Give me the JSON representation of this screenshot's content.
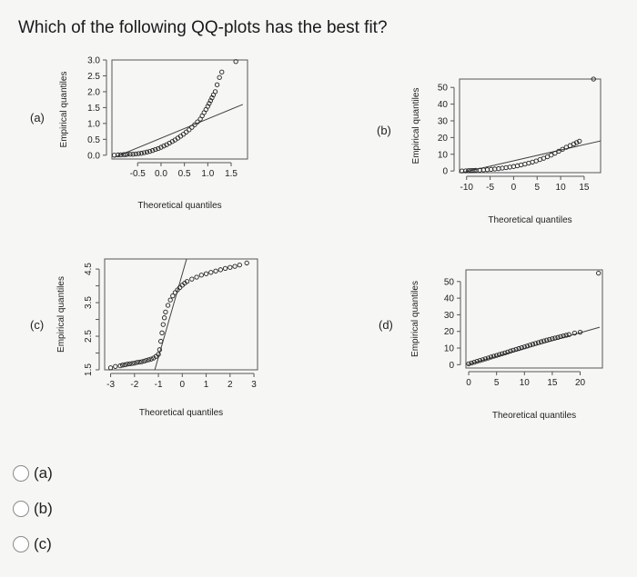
{
  "question": "Which of the following QQ-plots has the best fit?",
  "options": [
    {
      "label": "(a)"
    },
    {
      "label": "(b)"
    },
    {
      "label": "(c)"
    }
  ],
  "chart_data": [
    {
      "panel_label": "(a)",
      "type": "scatter",
      "xlabel": "Theoretical quantiles",
      "ylabel": "Empirical quantiles",
      "x_ticks": [
        -0.5,
        0.0,
        0.5,
        1.0,
        1.5
      ],
      "x_tick_labels": [
        "-0.5",
        "0.0",
        "0.5",
        "1.0",
        "1.5"
      ],
      "y_ticks": [
        0.0,
        0.5,
        1.0,
        1.5,
        2.0,
        2.5,
        3.0
      ],
      "y_tick_labels": [
        "0.0",
        "0.5",
        "1.0",
        "1.5",
        "2.0",
        "2.5",
        "3.0"
      ],
      "xlim": [
        -1.05,
        1.85
      ],
      "ylim": [
        -0.12,
        3.0
      ],
      "reference_line": [
        [
          -1.0,
          -0.07
        ],
        [
          1.75,
          1.6
        ]
      ],
      "points": [
        [
          -1.0,
          0.0
        ],
        [
          -0.92,
          0.01
        ],
        [
          -0.86,
          0.01
        ],
        [
          -0.8,
          0.02
        ],
        [
          -0.76,
          0.02
        ],
        [
          -0.72,
          0.03
        ],
        [
          -0.66,
          0.03
        ],
        [
          -0.6,
          0.03
        ],
        [
          -0.54,
          0.04
        ],
        [
          -0.48,
          0.05
        ],
        [
          -0.42,
          0.06
        ],
        [
          -0.36,
          0.08
        ],
        [
          -0.3,
          0.1
        ],
        [
          -0.24,
          0.12
        ],
        [
          -0.18,
          0.15
        ],
        [
          -0.12,
          0.18
        ],
        [
          -0.06,
          0.21
        ],
        [
          0.0,
          0.25
        ],
        [
          0.06,
          0.29
        ],
        [
          0.12,
          0.33
        ],
        [
          0.18,
          0.38
        ],
        [
          0.24,
          0.43
        ],
        [
          0.3,
          0.48
        ],
        [
          0.36,
          0.54
        ],
        [
          0.42,
          0.6
        ],
        [
          0.48,
          0.66
        ],
        [
          0.54,
          0.73
        ],
        [
          0.6,
          0.8
        ],
        [
          0.66,
          0.88
        ],
        [
          0.72,
          0.96
        ],
        [
          0.78,
          1.05
        ],
        [
          0.84,
          1.14
        ],
        [
          0.88,
          1.24
        ],
        [
          0.92,
          1.34
        ],
        [
          0.96,
          1.44
        ],
        [
          1.0,
          1.54
        ],
        [
          1.03,
          1.63
        ],
        [
          1.06,
          1.72
        ],
        [
          1.09,
          1.81
        ],
        [
          1.12,
          1.9
        ],
        [
          1.16,
          2.0
        ],
        [
          1.2,
          2.22
        ],
        [
          1.25,
          2.45
        ],
        [
          1.3,
          2.62
        ],
        [
          1.6,
          2.95
        ]
      ]
    },
    {
      "panel_label": "(b)",
      "type": "scatter",
      "xlabel": "Theoretical quantiles",
      "ylabel": "Empirical quantiles",
      "x_ticks": [
        -10,
        -5,
        0,
        5,
        10,
        15
      ],
      "x_tick_labels": [
        "-10",
        "-5",
        "0",
        "5",
        "10",
        "15"
      ],
      "y_ticks": [
        0,
        10,
        20,
        30,
        40,
        50
      ],
      "y_tick_labels": [
        "0",
        "10",
        "20",
        "30",
        "40",
        "50"
      ],
      "xlim": [
        -11.5,
        18.5
      ],
      "ylim": [
        -1,
        55
      ],
      "reference_line": [
        [
          -11,
          -1
        ],
        [
          18.5,
          18
        ]
      ],
      "points": [
        [
          -11,
          0.0
        ],
        [
          -10.2,
          0.1
        ],
        [
          -9.6,
          0.2
        ],
        [
          -9.2,
          0.2
        ],
        [
          -8.8,
          0.3
        ],
        [
          -8.4,
          0.3
        ],
        [
          -8.0,
          0.4
        ],
        [
          -7.2,
          0.5
        ],
        [
          -6.4,
          0.6
        ],
        [
          -5.6,
          0.8
        ],
        [
          -4.8,
          1.0
        ],
        [
          -4.0,
          1.2
        ],
        [
          -3.2,
          1.4
        ],
        [
          -2.4,
          1.7
        ],
        [
          -1.6,
          2.0
        ],
        [
          -0.8,
          2.3
        ],
        [
          0.0,
          2.7
        ],
        [
          0.8,
          3.1
        ],
        [
          1.6,
          3.6
        ],
        [
          2.4,
          4.1
        ],
        [
          3.2,
          4.7
        ],
        [
          4.0,
          5.3
        ],
        [
          4.8,
          6.0
        ],
        [
          5.6,
          6.8
        ],
        [
          6.4,
          7.6
        ],
        [
          7.2,
          8.5
        ],
        [
          8.0,
          9.5
        ],
        [
          8.8,
          10.6
        ],
        [
          9.6,
          11.8
        ],
        [
          10.4,
          13.0
        ],
        [
          11.2,
          14.2
        ],
        [
          12.0,
          15.2
        ],
        [
          12.8,
          16.2
        ],
        [
          13.4,
          17.0
        ],
        [
          14.0,
          17.8
        ],
        [
          17.0,
          55.0
        ]
      ]
    },
    {
      "panel_label": "(c)",
      "type": "scatter",
      "xlabel": "Theoretical quantiles",
      "ylabel": "Empirical quantiles",
      "x_ticks": [
        -3,
        -2,
        -1,
        0,
        1,
        2,
        3
      ],
      "x_tick_labels": [
        "-3",
        "-2",
        "-1",
        "0",
        "1",
        "2",
        "3"
      ],
      "y_ticks": [
        1.5,
        2.0,
        2.5,
        3.0,
        3.5,
        4.0,
        4.5
      ],
      "y_tick_labels": [
        "1.5",
        "",
        "2.5",
        "",
        "3.5",
        "",
        "4.5"
      ],
      "xlim": [
        -3.25,
        3.15
      ],
      "ylim": [
        1.5,
        4.8
      ],
      "reference_line": [
        [
          -1.15,
          1.5
        ],
        [
          0.2,
          4.85
        ]
      ],
      "points": [
        [
          -3.0,
          1.56
        ],
        [
          -2.8,
          1.6
        ],
        [
          -2.6,
          1.62
        ],
        [
          -2.5,
          1.64
        ],
        [
          -2.4,
          1.65
        ],
        [
          -2.3,
          1.67
        ],
        [
          -2.2,
          1.68
        ],
        [
          -2.1,
          1.69
        ],
        [
          -2.0,
          1.7
        ],
        [
          -1.9,
          1.72
        ],
        [
          -1.8,
          1.73
        ],
        [
          -1.7,
          1.74
        ],
        [
          -1.6,
          1.76
        ],
        [
          -1.5,
          1.78
        ],
        [
          -1.4,
          1.8
        ],
        [
          -1.3,
          1.82
        ],
        [
          -1.2,
          1.85
        ],
        [
          -1.1,
          1.9
        ],
        [
          -1.0,
          1.96
        ],
        [
          -0.95,
          2.1
        ],
        [
          -0.9,
          2.35
        ],
        [
          -0.85,
          2.6
        ],
        [
          -0.8,
          2.85
        ],
        [
          -0.75,
          3.05
        ],
        [
          -0.7,
          3.22
        ],
        [
          -0.6,
          3.42
        ],
        [
          -0.5,
          3.58
        ],
        [
          -0.4,
          3.7
        ],
        [
          -0.3,
          3.8
        ],
        [
          -0.2,
          3.88
        ],
        [
          -0.1,
          3.95
        ],
        [
          0.0,
          4.02
        ],
        [
          0.1,
          4.08
        ],
        [
          0.2,
          4.13
        ],
        [
          0.4,
          4.2
        ],
        [
          0.6,
          4.26
        ],
        [
          0.8,
          4.32
        ],
        [
          1.0,
          4.36
        ],
        [
          1.2,
          4.4
        ],
        [
          1.4,
          4.44
        ],
        [
          1.6,
          4.48
        ],
        [
          1.8,
          4.52
        ],
        [
          2.0,
          4.55
        ],
        [
          2.2,
          4.58
        ],
        [
          2.4,
          4.62
        ],
        [
          2.7,
          4.68
        ]
      ]
    },
    {
      "panel_label": "(d)",
      "type": "scatter",
      "xlabel": "Theoretical quantiles",
      "ylabel": "Empirical quantiles",
      "x_ticks": [
        0,
        5,
        10,
        15,
        20
      ],
      "x_tick_labels": [
        "0",
        "5",
        "10",
        "15",
        "20"
      ],
      "y_ticks": [
        0,
        10,
        20,
        30,
        40,
        50
      ],
      "y_tick_labels": [
        "0",
        "10",
        "20",
        "30",
        "40",
        "50"
      ],
      "xlim": [
        -0.5,
        24
      ],
      "ylim": [
        -2,
        57
      ],
      "reference_line": [
        [
          -0.2,
          0
        ],
        [
          23.5,
          22.5
        ]
      ],
      "points": [
        [
          0.0,
          0.5
        ],
        [
          0.5,
          1.0
        ],
        [
          1.0,
          1.5
        ],
        [
          1.5,
          2.0
        ],
        [
          2.0,
          2.5
        ],
        [
          2.5,
          3.0
        ],
        [
          3.0,
          3.5
        ],
        [
          3.5,
          4.0
        ],
        [
          4.0,
          4.6
        ],
        [
          4.5,
          5.1
        ],
        [
          5.0,
          5.6
        ],
        [
          5.5,
          6.1
        ],
        [
          6.0,
          6.6
        ],
        [
          6.5,
          7.1
        ],
        [
          7.0,
          7.6
        ],
        [
          7.5,
          8.2
        ],
        [
          8.0,
          8.7
        ],
        [
          8.5,
          9.2
        ],
        [
          9.0,
          9.7
        ],
        [
          9.5,
          10.2
        ],
        [
          10.0,
          10.7
        ],
        [
          10.5,
          11.2
        ],
        [
          11.0,
          11.8
        ],
        [
          11.5,
          12.3
        ],
        [
          12.0,
          12.8
        ],
        [
          12.5,
          13.3
        ],
        [
          13.0,
          13.8
        ],
        [
          13.5,
          14.3
        ],
        [
          14.0,
          14.8
        ],
        [
          14.5,
          15.2
        ],
        [
          15.0,
          15.6
        ],
        [
          15.5,
          16.0
        ],
        [
          16.0,
          16.4
        ],
        [
          16.5,
          16.9
        ],
        [
          17.0,
          17.3
        ],
        [
          17.5,
          17.7
        ],
        [
          18.0,
          18.1
        ],
        [
          19.0,
          19.0
        ],
        [
          20.0,
          19.5
        ],
        [
          23.3,
          55.0
        ]
      ]
    }
  ]
}
